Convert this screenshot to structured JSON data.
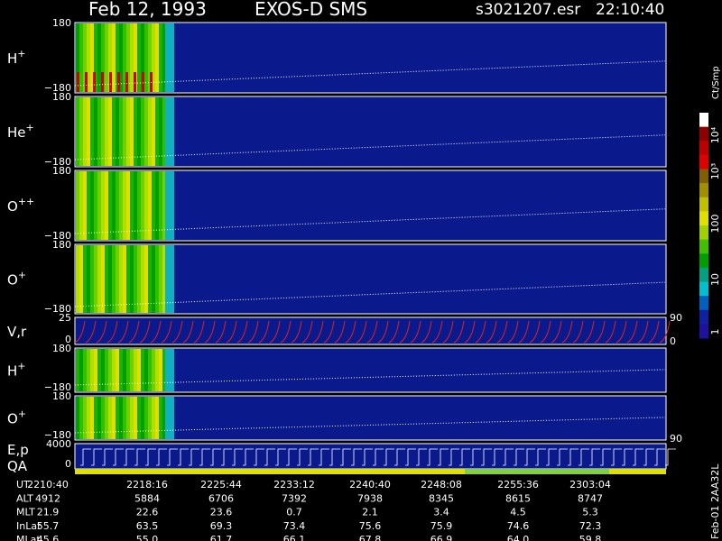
{
  "header": {
    "date": "Feb 12, 1993",
    "instrument": "EXOS-D SMS",
    "file": "s3021207.esr",
    "time": "22:10:40"
  },
  "panels": [
    {
      "label": "H",
      "charge": "+",
      "top": "180",
      "bottom": "−180"
    },
    {
      "label": "He",
      "charge": "+",
      "top": "180",
      "bottom": "−180"
    },
    {
      "label": "O",
      "charge": "++",
      "top": "180",
      "bottom": "−180"
    },
    {
      "label": "O",
      "charge": "+",
      "top": "180",
      "bottom": "−180"
    },
    {
      "label": "V,r",
      "charge": "",
      "top": "25",
      "bottom": "0",
      "right_top": "90",
      "right_bottom": "0"
    },
    {
      "label": "H",
      "charge": "+",
      "top": "180",
      "bottom": "−180"
    },
    {
      "label": "O",
      "charge": "+",
      "top": "180",
      "bottom": "−180",
      "right_bottom": "90"
    },
    {
      "label": "E,p",
      "charge": "",
      "label2": "QA",
      "top": "4000",
      "bottom": "0"
    }
  ],
  "colorbar": {
    "unit": "Ct/Smp",
    "labels": [
      "10⁴",
      "10³",
      "100",
      "10",
      "1"
    ]
  },
  "side_note": "Feb-01 2AA32L",
  "footer": {
    "rows": [
      [
        "UT",
        "2210:40",
        "2218:16",
        "2225:44",
        "2233:12",
        "2240:40",
        "2248:08",
        "2255:36",
        "2303:04"
      ],
      [
        "ALT",
        "4912",
        "5884",
        "6706",
        "7392",
        "7938",
        "8345",
        "8615",
        "8747"
      ],
      [
        "MLT",
        "21.9",
        "22.6",
        "23.6",
        "0.7",
        "2.1",
        "3.4",
        "4.5",
        "5.3"
      ],
      [
        "InLat",
        "55.7",
        "63.5",
        "69.3",
        "73.4",
        "75.6",
        "75.9",
        "74.6",
        "72.3"
      ],
      [
        "MLat",
        "45.6",
        "55.0",
        "61.7",
        "66.1",
        "67.8",
        "66.9",
        "64.0",
        "59.8"
      ]
    ]
  }
}
